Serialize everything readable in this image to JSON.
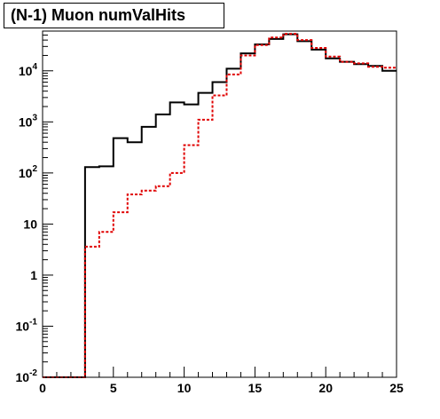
{
  "chart_data": {
    "type": "step-histogram",
    "title": "(N-1) Muon numValHits",
    "xlabel": "",
    "ylabel": "",
    "xlim": [
      0,
      25
    ],
    "ylim": [
      0.01,
      60000
    ],
    "yscale": "log",
    "grid": false,
    "x_ticks": [
      0,
      5,
      10,
      15,
      20,
      25
    ],
    "y_ticks": [
      {
        "value": 0.01,
        "base": "10",
        "exp": "-2"
      },
      {
        "value": 0.1,
        "base": "10",
        "exp": "-1"
      },
      {
        "value": 1,
        "base": "1",
        "exp": ""
      },
      {
        "value": 10,
        "base": "10",
        "exp": ""
      },
      {
        "value": 100,
        "base": "10",
        "exp": "2"
      },
      {
        "value": 1000,
        "base": "10",
        "exp": "3"
      },
      {
        "value": 10000,
        "base": "10",
        "exp": "4"
      }
    ],
    "bin_edges": [
      0,
      1,
      2,
      3,
      4,
      5,
      6,
      7,
      8,
      9,
      10,
      11,
      12,
      13,
      14,
      15,
      16,
      17,
      18,
      19,
      20,
      21,
      22,
      23,
      24,
      25
    ],
    "series": [
      {
        "color": "#000000",
        "style": "solid",
        "values": [
          0.01,
          0.01,
          0.01,
          130,
          135,
          480,
          400,
          800,
          1400,
          2400,
          2200,
          3700,
          6000,
          11000,
          22000,
          33000,
          42000,
          52000,
          38000,
          26000,
          17500,
          15000,
          13500,
          12500,
          10000
        ]
      },
      {
        "color": "#e00000",
        "style": "dashed",
        "values": [
          0.01,
          0.01,
          0.01,
          3.6,
          7,
          17,
          38,
          45,
          55,
          100,
          350,
          1100,
          3300,
          8500,
          20000,
          32000,
          45000,
          53000,
          40000,
          28000,
          19000,
          15000,
          14000,
          12000,
          11500
        ]
      }
    ]
  }
}
